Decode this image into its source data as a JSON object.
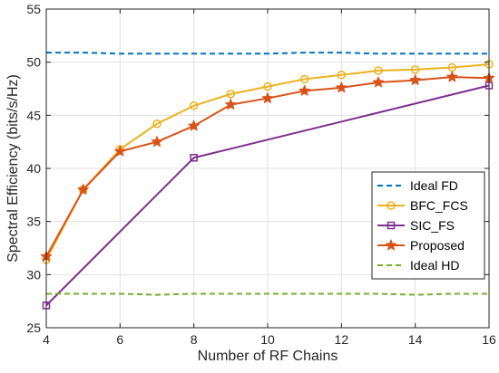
{
  "chart_data": {
    "type": "line",
    "xlabel": "Number of RF Chains",
    "ylabel": "Spectral Efficiency (bits/s/Hz)",
    "xlim": [
      4,
      16
    ],
    "ylim": [
      25,
      55
    ],
    "xticks": [
      4,
      6,
      8,
      10,
      12,
      14,
      16
    ],
    "yticks": [
      25,
      30,
      35,
      40,
      45,
      50,
      55
    ],
    "grid": true,
    "legend_position": "bottom-right",
    "series": [
      {
        "name": "Ideal FD",
        "color": "#0072BD",
        "line_style": "dashed",
        "marker": "none",
        "x": [
          4,
          5,
          6,
          7,
          8,
          9,
          10,
          11,
          12,
          13,
          14,
          15,
          16
        ],
        "y": [
          50.9,
          50.9,
          50.8,
          50.8,
          50.8,
          50.8,
          50.8,
          50.9,
          50.9,
          50.8,
          50.8,
          50.8,
          50.8
        ]
      },
      {
        "name": "BFC_FCS",
        "color": "#EDB120",
        "line_style": "solid",
        "marker": "circle",
        "x": [
          4,
          5,
          6,
          7,
          8,
          9,
          10,
          11,
          12,
          13,
          14,
          15,
          16
        ],
        "y": [
          31.4,
          38.0,
          41.8,
          44.2,
          45.9,
          47.0,
          47.7,
          48.4,
          48.8,
          49.2,
          49.3,
          49.5,
          49.8
        ]
      },
      {
        "name": "SIC_FS",
        "color": "#7E2F8E",
        "line_style": "solid",
        "marker": "square",
        "x": [
          4,
          8,
          16
        ],
        "y": [
          27.1,
          41.0,
          47.8
        ]
      },
      {
        "name": "Proposed",
        "color": "#D95319",
        "line_style": "solid",
        "marker": "star",
        "x": [
          4,
          5,
          6,
          7,
          8,
          9,
          10,
          11,
          12,
          13,
          14,
          15,
          16
        ],
        "y": [
          31.7,
          38.0,
          41.6,
          42.5,
          44.0,
          46.0,
          46.6,
          47.3,
          47.6,
          48.1,
          48.3,
          48.6,
          48.5
        ]
      },
      {
        "name": "Ideal HD",
        "color": "#77AC30",
        "line_style": "dashed",
        "marker": "none",
        "x": [
          4,
          5,
          6,
          7,
          8,
          9,
          10,
          11,
          12,
          13,
          14,
          15,
          16
        ],
        "y": [
          28.2,
          28.2,
          28.2,
          28.1,
          28.2,
          28.2,
          28.2,
          28.2,
          28.2,
          28.2,
          28.1,
          28.2,
          28.2
        ]
      }
    ]
  }
}
